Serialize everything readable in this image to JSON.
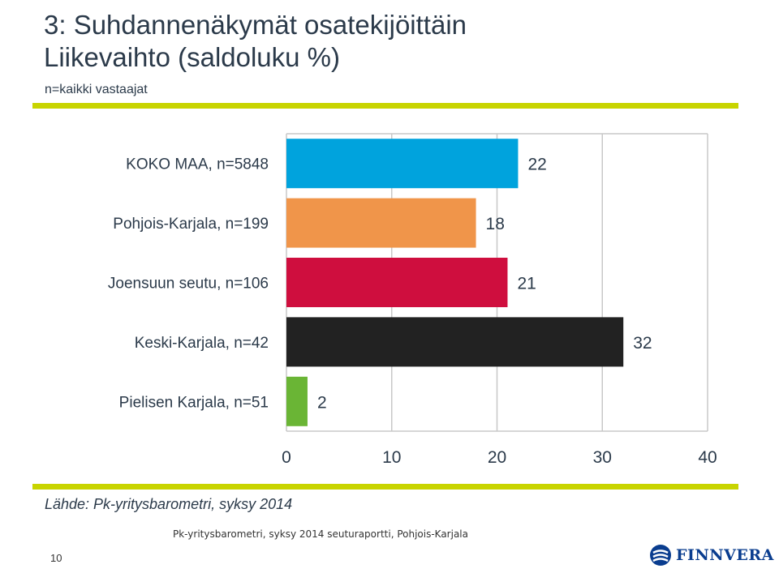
{
  "header": {
    "title_line1": "3: Suhdannenäkymät osatekijöittäin",
    "title_line2": "Liikevaihto (saldoluku %)",
    "subtitle": "n=kaikki vastaajat"
  },
  "colors": {
    "accent_rule": "#c8d400",
    "grid": "#c8c8c8",
    "text": "#2b3a4a"
  },
  "chart_data": {
    "type": "bar",
    "orientation": "horizontal",
    "categories": [
      "KOKO MAA, n=5848",
      "Pohjois-Karjala, n=199",
      "Joensuun seutu, n=106",
      "Keski-Karjala, n=42",
      "Pielisen Karjala, n=51"
    ],
    "values": [
      22,
      18,
      21,
      32,
      2
    ],
    "colors": [
      "#00a3dd",
      "#f0954a",
      "#cf0e3e",
      "#222222",
      "#6ab535"
    ],
    "xlim": [
      0,
      40
    ],
    "xticks": [
      "0",
      "10",
      "20",
      "30",
      "40"
    ],
    "grid": true,
    "data_labels": true
  },
  "source": "Lähde: Pk-yritysbarometri, syksy 2014",
  "footer": "Pk-yritysbarometri, syksy 2014 seuturaportti, Pohjois-Karjala",
  "page_number": "10",
  "logo": {
    "text": "FINNVERA",
    "icon": "finnvera-logo-icon"
  }
}
